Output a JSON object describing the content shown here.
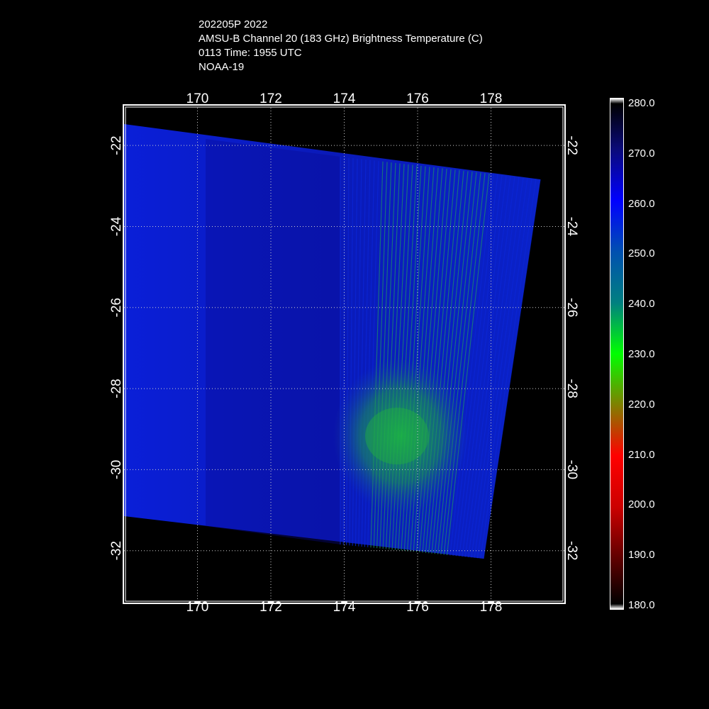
{
  "header": {
    "storm_line": "202205P 2022",
    "product_line": "AMSU-B Channel 20 (183 GHz) Brightness Temperature (C)",
    "time_line": "0113 Time: 1955 UTC",
    "satellite_line": "NOAA-19"
  },
  "map": {
    "lon_ticks": [
      "170",
      "172",
      "174",
      "176",
      "178"
    ],
    "lat_ticks": [
      "-22",
      "-24",
      "-26",
      "-28",
      "-30",
      "-32"
    ],
    "lon_range": [
      168.0,
      180.0
    ],
    "lat_range": [
      -21.0,
      -33.3
    ],
    "grid": "dotted",
    "swath_edge_color": "#0a26d8",
    "swath_fill_color": "#0a1fc8",
    "warm_core_color": "#1fa040",
    "cold_region_lon": [
      174.0,
      177.0
    ],
    "cold_region_lat": [
      -28.0,
      -32.0
    ]
  },
  "colorbar": {
    "labels": [
      "280.0",
      "270.0",
      "260.0",
      "250.0",
      "240.0",
      "230.0",
      "220.0",
      "210.0",
      "200.0",
      "190.0",
      "180.0"
    ],
    "stops": [
      {
        "value": 280,
        "color": "#ffffff"
      },
      {
        "value": 279,
        "color": "#000000"
      },
      {
        "value": 270,
        "color": "#0a0a7a"
      },
      {
        "value": 260,
        "color": "#0000ff"
      },
      {
        "value": 250,
        "color": "#0050b0"
      },
      {
        "value": 240,
        "color": "#008080"
      },
      {
        "value": 230,
        "color": "#00ff00"
      },
      {
        "value": 220,
        "color": "#808000"
      },
      {
        "value": 210,
        "color": "#ff0000"
      },
      {
        "value": 200,
        "color": "#cc0000"
      },
      {
        "value": 190,
        "color": "#600000"
      },
      {
        "value": 181,
        "color": "#000000"
      },
      {
        "value": 180,
        "color": "#ffffff"
      }
    ]
  }
}
